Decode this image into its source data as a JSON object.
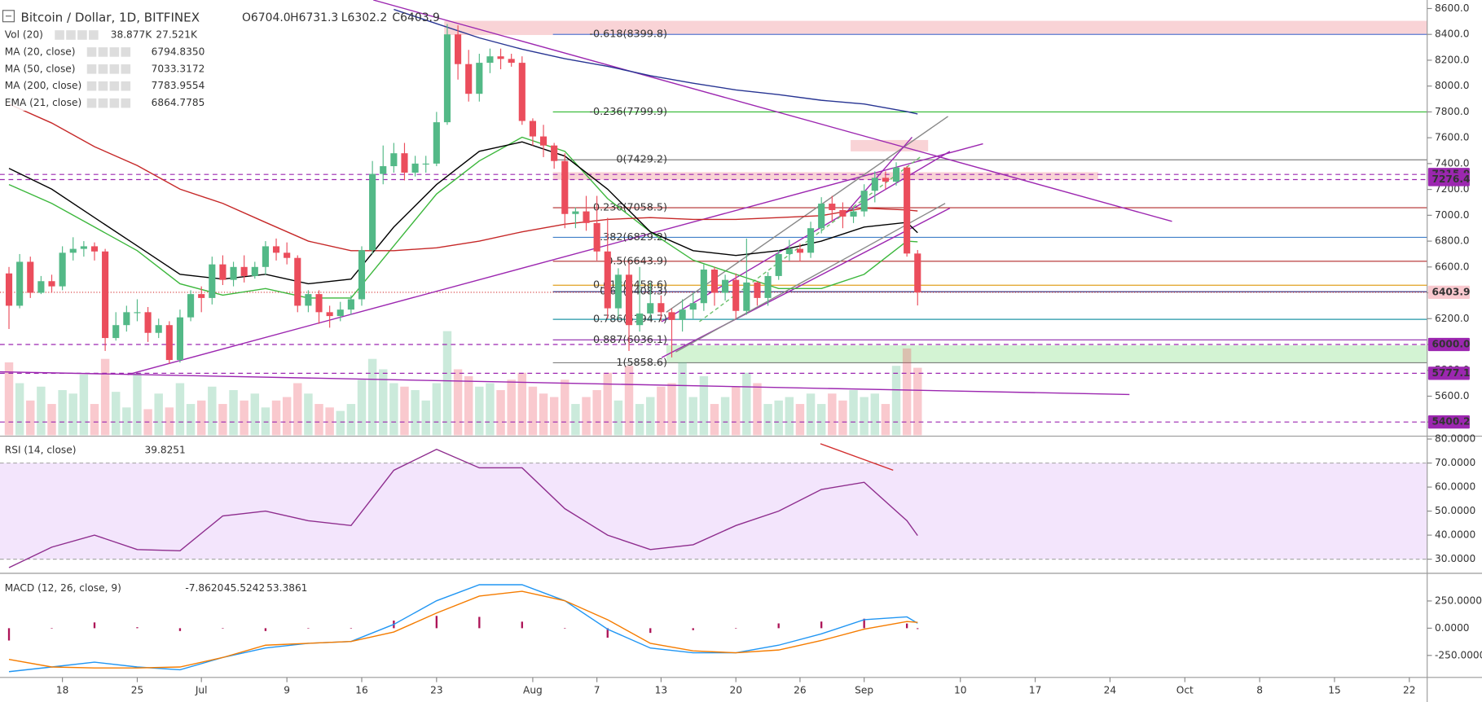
{
  "chart_data": {
    "type": "candlestick",
    "title": "Bitcoin / Dollar, 1D, BITFINEX",
    "ohlc_labels": [
      "O6704.0",
      "H6731.3",
      "L6302.2",
      "C6403.9"
    ],
    "legend": [
      {
        "name": "Vol (20)",
        "values": [
          "38.877K",
          "27.521K"
        ],
        "colors": [
          "#e0505e",
          "#f09030"
        ]
      },
      {
        "name": "MA (20, close)",
        "values": [
          "6794.8350"
        ],
        "colors": [
          "#3cb73c"
        ]
      },
      {
        "name": "MA (50, close)",
        "values": [
          "7033.3172"
        ],
        "colors": [
          "#c62828"
        ]
      },
      {
        "name": "MA (200, close)",
        "values": [
          "7783.9554"
        ],
        "colors": [
          "#283593"
        ]
      },
      {
        "name": "EMA (21, close)",
        "values": [
          "6864.7785"
        ],
        "colors": [
          "#000000"
        ]
      }
    ],
    "xlim": [
      -0.84,
      132.67
    ],
    "xticks": [
      {
        "value": 5,
        "label": "18"
      },
      {
        "value": 12,
        "label": "25"
      },
      {
        "value": 18,
        "label": "Jul"
      },
      {
        "value": 26,
        "label": "9"
      },
      {
        "value": 33,
        "label": "16"
      },
      {
        "value": 40,
        "label": "23"
      },
      {
        "value": 49,
        "label": "Aug"
      },
      {
        "value": 55,
        "label": "7"
      },
      {
        "value": 61,
        "label": "13"
      },
      {
        "value": 68,
        "label": "20"
      },
      {
        "value": 74,
        "label": "26"
      },
      {
        "value": 80,
        "label": "Sep"
      },
      {
        "value": 89,
        "label": "10"
      },
      {
        "value": 96,
        "label": "17"
      },
      {
        "value": 103,
        "label": "24"
      },
      {
        "value": 110,
        "label": "Oct"
      },
      {
        "value": 117,
        "label": "8"
      },
      {
        "value": 124,
        "label": "15"
      },
      {
        "value": 131,
        "label": "22"
      }
    ],
    "ylim": [
      5298,
      8666
    ],
    "yticks": [
      {
        "value": 8600,
        "label": "8600.0"
      },
      {
        "value": 8400,
        "label": "8400.0"
      },
      {
        "value": 8200,
        "label": "8200.0"
      },
      {
        "value": 8000,
        "label": "8000.0"
      },
      {
        "value": 7800,
        "label": "7800.0"
      },
      {
        "value": 7600,
        "label": "7600.0"
      },
      {
        "value": 7400,
        "label": "7400.0"
      },
      {
        "value": 7200,
        "label": "7200.0"
      },
      {
        "value": 7000,
        "label": "7000.0"
      },
      {
        "value": 6800,
        "label": "6800.0"
      },
      {
        "value": 6600,
        "label": "6600.0"
      },
      {
        "value": 6400,
        "label": "6400.0"
      },
      {
        "value": 6200,
        "label": "6200.0"
      },
      {
        "value": 6000,
        "label": "6000.0"
      },
      {
        "value": 5800,
        "label": "5800.0"
      },
      {
        "value": 5600,
        "label": "5600.0"
      },
      {
        "value": 5400,
        "label": "5400.0"
      }
    ],
    "up_color": "#53b987",
    "down_color": "#eb4d5c",
    "open": [
      6550,
      6300,
      6640,
      6400,
      6490,
      6450,
      6710,
      6740,
      6760,
      6720,
      6050,
      6150,
      6250,
      6250,
      6090,
      6150,
      5880,
      6210,
      6390,
      6360,
      6620,
      6500,
      6600,
      6530,
      6600,
      6760,
      6710,
      6670,
      6300,
      6390,
      6250,
      6220,
      6270,
      6350,
      6730,
      7320,
      7380,
      7480,
      7330,
      7400,
      7400,
      7720,
      8400,
      8170,
      7940,
      8180,
      8230,
      8210,
      8180,
      7730,
      7610,
      7540,
      7420,
      7010,
      7030,
      6940,
      6720,
      6280,
      6540,
      6150,
      6240,
      6320,
      6250,
      6190,
      6270,
      6320,
      6580,
      6400,
      6500,
      6260,
      6480,
      6360,
      6530,
      6700,
      6740,
      6710,
      6900,
      7090,
      7040,
      6990,
      7030,
      7190,
      7290,
      7260,
      7370,
      6704
    ],
    "high": [
      6600,
      6700,
      6680,
      6530,
      6540,
      6760,
      6830,
      6800,
      6790,
      6740,
      6250,
      6300,
      6350,
      6290,
      6200,
      6180,
      6270,
      6420,
      6450,
      6680,
      6690,
      6640,
      6690,
      6640,
      6800,
      6820,
      6790,
      6690,
      6420,
      6420,
      6300,
      6330,
      6380,
      6760,
      7420,
      7540,
      7560,
      7560,
      7460,
      7460,
      7800,
      8480,
      8470,
      8280,
      8250,
      8290,
      8290,
      8250,
      8230,
      7750,
      7700,
      7560,
      7480,
      7060,
      7150,
      7150,
      6980,
      6590,
      6640,
      6600,
      6480,
      6380,
      6280,
      6350,
      6400,
      6620,
      6600,
      6540,
      6550,
      6820,
      6490,
      6560,
      6730,
      6810,
      6780,
      6950,
      7140,
      7150,
      7100,
      7060,
      7240,
      7340,
      7340,
      7410,
      7380,
      6731.3
    ],
    "low": [
      6120,
      6280,
      6360,
      6390,
      6400,
      6420,
      6650,
      6680,
      6650,
      5950,
      6030,
      6100,
      6180,
      6020,
      6050,
      5850,
      5860,
      6180,
      6250,
      6310,
      6460,
      6450,
      6480,
      6510,
      6540,
      6650,
      6620,
      6250,
      6250,
      6160,
      6130,
      6180,
      6230,
      6300,
      6700,
      7240,
      7330,
      7270,
      7300,
      7330,
      7380,
      7700,
      8050,
      7880,
      7880,
      8100,
      8130,
      8150,
      7700,
      7540,
      7450,
      7360,
      6900,
      6900,
      6880,
      6650,
      6200,
      6200,
      5950,
      6100,
      6200,
      6180,
      5900,
      6100,
      6200,
      6260,
      6300,
      6340,
      6200,
      6230,
      6300,
      6300,
      6500,
      6650,
      6640,
      6670,
      6860,
      6950,
      6900,
      6940,
      6990,
      7100,
      7200,
      7230,
      6680,
      6302.2
    ],
    "close": [
      6300,
      6640,
      6400,
      6490,
      6450,
      6710,
      6740,
      6760,
      6720,
      6050,
      6150,
      6250,
      6250,
      6090,
      6150,
      5880,
      6210,
      6390,
      6360,
      6620,
      6500,
      6600,
      6530,
      6600,
      6760,
      6710,
      6670,
      6300,
      6390,
      6250,
      6220,
      6270,
      6350,
      6730,
      7320,
      7380,
      7480,
      7330,
      7400,
      7400,
      7720,
      8400,
      8170,
      7940,
      8180,
      8230,
      8210,
      8180,
      7730,
      7610,
      7540,
      7420,
      7010,
      7030,
      6940,
      6720,
      6280,
      6540,
      6150,
      6240,
      6320,
      6250,
      6190,
      6270,
      6320,
      6580,
      6400,
      6500,
      6260,
      6480,
      6360,
      6530,
      6700,
      6740,
      6710,
      6900,
      7090,
      7040,
      6990,
      7030,
      7190,
      7290,
      7260,
      7370,
      6704,
      6403.9
    ],
    "volume": {
      "ylim": [
        0,
        60
      ],
      "values": [
        42,
        30,
        20,
        28,
        18,
        26,
        24,
        35,
        18,
        44,
        25,
        16,
        36,
        15,
        24,
        16,
        30,
        18,
        20,
        28,
        18,
        26,
        20,
        24,
        16,
        20,
        22,
        30,
        24,
        18,
        16,
        14,
        18,
        32,
        44,
        38,
        30,
        28,
        26,
        20,
        30,
        60,
        38,
        34,
        28,
        30,
        26,
        32,
        36,
        28,
        24,
        22,
        32,
        18,
        22,
        26,
        36,
        20,
        40,
        18,
        22,
        28,
        30,
        42,
        22,
        34,
        18,
        22,
        28,
        36,
        30,
        18,
        20,
        22,
        18,
        24,
        18,
        24,
        20,
        26,
        22,
        24,
        18,
        40,
        50,
        38.877
      ]
    },
    "overlays": [
      {
        "color": "#3cb73c",
        "x": [
          0,
          4,
          8,
          12,
          16,
          20,
          24,
          28,
          32,
          36,
          40,
          44,
          48,
          52,
          56,
          60,
          64,
          68,
          72,
          76,
          80,
          84,
          85
        ],
        "values": [
          7238,
          7092,
          6909,
          6726,
          6470,
          6382,
          6433,
          6360,
          6360,
          6763,
          7165,
          7421,
          7604,
          7495,
          7129,
          6872,
          6653,
          6543,
          6433,
          6433,
          6543,
          6800,
          6794.835
        ]
      },
      {
        "color": "#c62828",
        "x": [
          0,
          4,
          8,
          12,
          16,
          20,
          24,
          28,
          32,
          36,
          40,
          44,
          48,
          52,
          56,
          60,
          64,
          68,
          72,
          76,
          80,
          84,
          85
        ],
        "values": [
          7861,
          7714,
          7531,
          7385,
          7202,
          7092,
          6945,
          6800,
          6726,
          6726,
          6748,
          6800,
          6872,
          6931,
          6968,
          6982,
          6968,
          6968,
          6982,
          6997,
          7055,
          7041,
          7033.3172
        ]
      },
      {
        "color": "#283593",
        "x": [
          36,
          40,
          44,
          48,
          52,
          56,
          60,
          64,
          68,
          72,
          76,
          80,
          84,
          85
        ],
        "values": [
          8593,
          8483,
          8373,
          8285,
          8212,
          8153,
          8080,
          8022,
          7970,
          7934,
          7890,
          7861,
          7802,
          7783.9554
        ]
      },
      {
        "color": "#000000",
        "x": [
          0,
          4,
          8,
          12,
          16,
          20,
          24,
          28,
          32,
          36,
          40,
          44,
          48,
          52,
          56,
          60,
          64,
          68,
          72,
          76,
          80,
          84,
          85
        ],
        "values": [
          7363,
          7202,
          6982,
          6763,
          6543,
          6506,
          6543,
          6470,
          6506,
          6909,
          7238,
          7495,
          7568,
          7458,
          7202,
          6872,
          6726,
          6689,
          6726,
          6800,
          6909,
          6945,
          6864.7785
        ]
      }
    ],
    "fib_levels": [
      {
        "label": "-0.618(8399.8)",
        "value": 8399.8,
        "color": "#5b7fd6"
      },
      {
        "label": "-0.236(7799.9)",
        "value": 7799.9,
        "color": "#2eb82e"
      },
      {
        "label": "0(7429.2)",
        "value": 7429.2,
        "color": "#808080"
      },
      {
        "label": "0.236(7058.5)",
        "value": 7058.5,
        "color": "#b22a2a"
      },
      {
        "label": "0.382(6829.2)",
        "value": 6829.2,
        "color": "#3f7fc8"
      },
      {
        "label": "0.5(6643.9)",
        "value": 6643.9,
        "color": "#b22a2a"
      },
      {
        "label": "0.618(6458.6)",
        "value": 6458.6,
        "color": "#e0a020"
      },
      {
        "label": "0.65(6408.3)",
        "value": 6408.3,
        "color": "#1a237e"
      },
      {
        "label": "0.786(6194.7)",
        "value": 6194.7,
        "color": "#2196a6"
      },
      {
        "label": "0.887(6036.1)",
        "value": 6036.1,
        "color": "#8e24aa"
      },
      {
        "label": "1(5858.6)",
        "value": 5858.6,
        "color": "#808080"
      }
    ],
    "price_tags": [
      {
        "value": 7315.9,
        "color": "#9c27b0",
        "text_color": "#ffffff",
        "line": "dashed"
      },
      {
        "value": 7276.4,
        "color": "#9c27b0",
        "text_color": "#ffffff",
        "line": "dashed"
      },
      {
        "value": 6403.9,
        "color": "#f9c9cf",
        "text_color": "#d32f2f",
        "line": "dotted"
      },
      {
        "value": 6000,
        "label": "6000.0",
        "color": "#9c27b0",
        "text_color": "#ffffff",
        "line": "dashed"
      },
      {
        "value": 5777.1,
        "color": "#9c27b0",
        "text_color": "#ffffff",
        "line": "dashed"
      },
      {
        "value": 5400.2,
        "color": "#9c27b0",
        "text_color": "#ffffff",
        "line": "dashed"
      }
    ],
    "rsi": {
      "title": "RSI (14, close)",
      "value_label": "39.8251",
      "color": "#8e2d8e",
      "band_color": "#f3e5fc",
      "ylim": [
        24.5,
        80.8
      ],
      "band": [
        30,
        70
      ],
      "yticks": [
        {
          "value": 80,
          "label": "80.0000"
        },
        {
          "value": 70,
          "label": "70.0000"
        },
        {
          "value": 60,
          "label": "60.0000"
        },
        {
          "value": 50,
          "label": "50.0000"
        },
        {
          "value": 40,
          "label": "40.0000"
        },
        {
          "value": 30,
          "label": "30.0000"
        }
      ],
      "x": [
        0,
        4,
        8,
        12,
        16,
        20,
        24,
        28,
        32,
        36,
        40,
        44,
        48,
        52,
        56,
        60,
        64,
        68,
        72,
        76,
        80,
        84,
        85
      ],
      "values": [
        26.5,
        35,
        40,
        34,
        33.5,
        48,
        50,
        46,
        44,
        67,
        75.7,
        68,
        68,
        51,
        40,
        34,
        36,
        44,
        50,
        59,
        62,
        46,
        39.8251
      ]
    },
    "macd": {
      "title": "MACD (12, 26, close, 9)",
      "value_labels": [
        "-7.8620",
        "45.5242",
        "53.3861"
      ],
      "colors": [
        "#ad1457",
        "#2196f3",
        "#f57c00"
      ],
      "ylim": [
        -443,
        495
      ],
      "yticks": [
        {
          "value": 250,
          "label": "250.0000"
        },
        {
          "value": 0,
          "label": "0.0000"
        },
        {
          "value": -250,
          "label": "-250.0000"
        }
      ],
      "x": [
        0,
        4,
        8,
        12,
        16,
        20,
        24,
        28,
        32,
        36,
        40,
        44,
        48,
        52,
        56,
        60,
        64,
        68,
        72,
        76,
        80,
        84,
        85
      ],
      "histogram": [
        -113,
        0,
        53,
        9,
        -26,
        0,
        -26,
        0,
        0,
        70,
        113,
        104,
        60,
        0,
        -87,
        -43,
        -18,
        0,
        44,
        61,
        87,
        43,
        -7.862
      ],
      "macd": [
        -399,
        -356,
        -312,
        -356,
        -382,
        -269,
        -182,
        -139,
        -122,
        35,
        252,
        399,
        399,
        252,
        -9,
        -182,
        -226,
        -226,
        -156,
        -52,
        78,
        104,
        45.5242
      ],
      "signal": [
        -286,
        -356,
        -365,
        -365,
        -356,
        -269,
        -156,
        -139,
        -122,
        -35,
        139,
        295,
        339,
        252,
        78,
        -139,
        -208,
        -226,
        -200,
        -113,
        -9,
        61,
        53.3861
      ]
    }
  }
}
